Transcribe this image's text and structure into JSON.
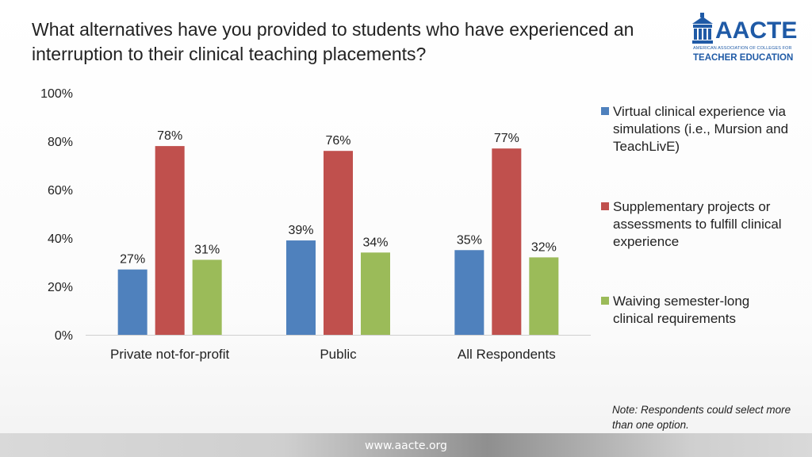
{
  "title": "What alternatives have you provided to students who have experienced an interruption to their clinical teaching placements?",
  "logo": {
    "word": "AACTE",
    "subtitle": "AMERICAN ASSOCIATION OF COLLEGES FOR",
    "subtitle2": "TEACHER EDUCATION"
  },
  "note": "Note:  Respondents could select more than one option.",
  "footer_url": "www.aacte.org",
  "chart_data": {
    "type": "bar",
    "categories": [
      "Private not-for-profit",
      "Public",
      "All Respondents"
    ],
    "series": [
      {
        "name": "Virtual clinical experience via simulations (i.e., Mursion and TeachLivE)",
        "values": [
          27,
          39,
          35
        ],
        "labels": [
          "27%",
          "39%",
          "35%"
        ],
        "color": "#4f81bd"
      },
      {
        "name": "Supplementary projects or assessments to fulfill clinical experience",
        "values": [
          78,
          76,
          77
        ],
        "labels": [
          "78%",
          "76%",
          "77%"
        ],
        "color": "#c0504d"
      },
      {
        "name": "Waiving semester-long clinical requirements",
        "values": [
          31,
          34,
          32
        ],
        "labels": [
          "31%",
          "34%",
          "32%"
        ],
        "color": "#9bbb59"
      }
    ],
    "ylim": [
      0,
      100
    ],
    "yticks": [
      "0%",
      "20%",
      "40%",
      "60%",
      "80%",
      "100%"
    ],
    "ytick_values": [
      0,
      20,
      40,
      60,
      80,
      100
    ],
    "grid": false,
    "legend": "right"
  }
}
